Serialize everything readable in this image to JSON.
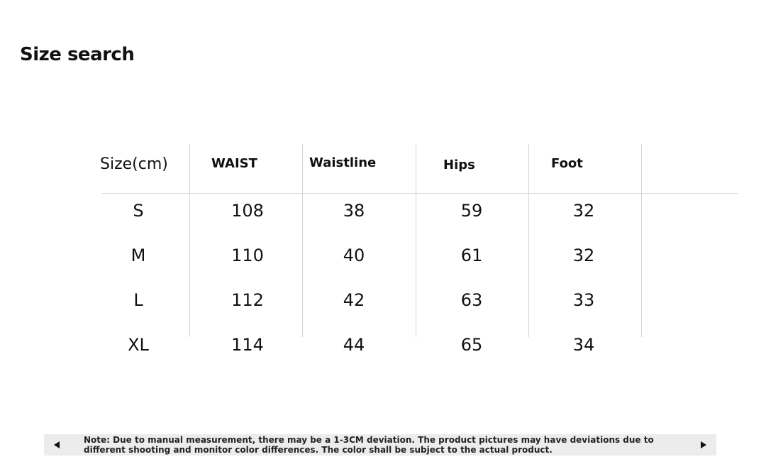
{
  "header": {
    "title": "Size search"
  },
  "table": {
    "columns": [
      "Size(cm)",
      "WAIST",
      "Waistline",
      "Hips",
      "Foot"
    ],
    "rows": [
      [
        "S",
        "108",
        "38",
        "59",
        "32"
      ],
      [
        "M",
        "110",
        "40",
        "61",
        "32"
      ],
      [
        "L",
        "112",
        "42",
        "63",
        "33"
      ],
      [
        "XL",
        "114",
        "44",
        "65",
        "34"
      ]
    ]
  },
  "note": "Note: Due to manual measurement, there may be a 1-3CM deviation. The product pictures may have deviations due to different shooting and monitor color differences. The color shall be subject to the actual product."
}
